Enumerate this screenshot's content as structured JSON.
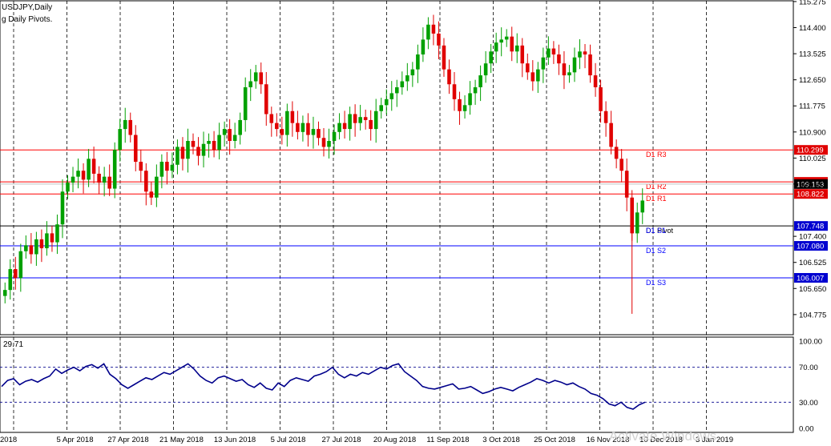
{
  "window": {
    "chart_title": "USDJPY,Daily",
    "indicator_title": "g Daily Pivots."
  },
  "rsi": {
    "value_label": "29.71",
    "levels": [
      70,
      30
    ],
    "scale_labels": [
      "100.00",
      "70.00",
      "30.00",
      "0.00"
    ]
  },
  "price_axis": {
    "labels": [
      "115.275",
      "114.400",
      "113.525",
      "112.650",
      "111.775",
      "110.900",
      "110.025",
      "109.153",
      "107.400",
      "106.525",
      "105.650",
      "104.775"
    ],
    "current_price": "109.153"
  },
  "pivots": {
    "lines": [
      {
        "name": "D1 R3",
        "value": 110.299,
        "price_label": "110.299",
        "color": "#ff0000",
        "box": "#e00000"
      },
      {
        "name": "D1 R2",
        "value": 109.226,
        "price_label": "109.226",
        "color": "#ff0000",
        "box": "#e00000"
      },
      {
        "name": "D1 R1",
        "value": 108.822,
        "price_label": "108.822",
        "color": "#ff0000",
        "box": "#e00000"
      },
      {
        "name": "D1 Pivot",
        "value": 107.748,
        "price_label": "107.748",
        "color": "#000000",
        "box": "#0000d0"
      },
      {
        "name": "D1 S1",
        "value": 107.748,
        "price_label": "",
        "color": "#0000ff",
        "box": "#0000d0"
      },
      {
        "name": "D1 S2",
        "value": 107.08,
        "price_label": "107.080",
        "color": "#0000ff",
        "box": "#0000d0"
      },
      {
        "name": "D1 S3",
        "value": 106.007,
        "price_label": "106.007",
        "color": "#0000ff",
        "box": "#0000d0"
      }
    ]
  },
  "time_axis": {
    "labels": [
      "2018",
      "5 Apr 2018",
      "27 Apr 2018",
      "21 May 2018",
      "13 Jun 2018",
      "5 Jul 2018",
      "27 Jul 2018",
      "20 Aug 2018",
      "11 Sep 2018",
      "3 Oct 2018",
      "25 Oct 2018",
      "16 Nov 2018",
      "10 Dec 2018",
      "3 Jan 2019"
    ]
  },
  "watermark": "Activate Windows",
  "colors": {
    "bull": "#00a000",
    "bear": "#e00000",
    "rsi_line": "#00008b",
    "grid": "#000000"
  },
  "chart_data": [
    {
      "type": "candlestick",
      "title": "USDJPY,Daily",
      "ylim": [
        104.1,
        115.3
      ],
      "close_series": [
        105.6,
        106.3,
        106.0,
        106.9,
        107.1,
        106.8,
        107.3,
        107.0,
        107.5,
        107.2,
        107.8,
        108.9,
        109.2,
        109.4,
        109.6,
        109.3,
        110.0,
        109.5,
        109.2,
        109.4,
        109.0,
        110.3,
        111.0,
        111.3,
        110.8,
        109.9,
        109.6,
        108.9,
        108.7,
        109.4,
        109.9,
        109.6,
        109.8,
        110.4,
        110.0,
        110.6,
        110.4,
        110.1,
        110.5,
        110.6,
        110.3,
        110.8,
        111.0,
        110.6,
        110.8,
        111.3,
        112.4,
        112.6,
        112.9,
        112.5,
        111.5,
        111.2,
        111.0,
        110.8,
        111.6,
        111.2,
        110.9,
        111.2,
        110.8,
        111.0,
        110.7,
        110.4,
        110.6,
        110.9,
        111.2,
        111.0,
        111.5,
        111.2,
        111.4,
        111.3,
        111.0,
        111.6,
        111.8,
        112.0,
        112.2,
        112.4,
        112.6,
        112.8,
        113.0,
        113.5,
        114.0,
        114.5,
        114.2,
        113.8,
        113.0,
        112.5,
        112.0,
        111.6,
        111.8,
        112.2,
        112.4,
        112.8,
        113.2,
        113.6,
        113.9,
        114.0,
        114.1,
        113.6,
        113.8,
        113.2,
        112.9,
        112.6,
        113.0,
        113.4,
        113.7,
        113.5,
        113.2,
        112.8,
        112.9,
        113.4,
        113.6,
        113.5,
        112.8,
        112.4,
        111.6,
        111.2,
        110.4,
        110.0,
        109.6,
        108.7,
        107.5,
        108.2,
        108.6
      ],
      "x_labels": [
        "2018",
        "5 Apr 2018",
        "27 Apr 2018",
        "21 May 2018",
        "13 Jun 2018",
        "5 Jul 2018",
        "27 Jul 2018",
        "20 Aug 2018",
        "11 Sep 2018",
        "3 Oct 2018",
        "25 Oct 2018",
        "16 Nov 2018",
        "10 Dec 2018",
        "3 Jan 2019"
      ],
      "pivots": {
        "D1 R3": 110.299,
        "D1 R2": 109.226,
        "D1 R1": 108.822,
        "D1 Pivot": 107.748,
        "D1 S2": 107.08,
        "D1 S3": 106.007
      },
      "current_price": 109.153
    },
    {
      "type": "line",
      "title": "29.71",
      "ylim": [
        0,
        100
      ],
      "levels": [
        70,
        30
      ],
      "series": [
        {
          "values": [
            48,
            55,
            57,
            50,
            54,
            56,
            53,
            57,
            60,
            68,
            63,
            67,
            70,
            66,
            71,
            73,
            69,
            74,
            62,
            57,
            50,
            46,
            50,
            54,
            58,
            56,
            60,
            64,
            62,
            66,
            70,
            74,
            68,
            60,
            55,
            52,
            58,
            60,
            57,
            54,
            56,
            50,
            47,
            52,
            46,
            44,
            52,
            48,
            55,
            58,
            56,
            54,
            60,
            62,
            65,
            70,
            62,
            58,
            62,
            60,
            64,
            62,
            66,
            70,
            68,
            72,
            74,
            65,
            60,
            55,
            48,
            46,
            45,
            47,
            49,
            51,
            45,
            46,
            48,
            44,
            40,
            42,
            45,
            47,
            45,
            43,
            47,
            50,
            53,
            57,
            55,
            52,
            55,
            53,
            50,
            52,
            48,
            45,
            40,
            38,
            34,
            28,
            26,
            30,
            24,
            22,
            27,
            30
          ]
        }
      ]
    }
  ]
}
